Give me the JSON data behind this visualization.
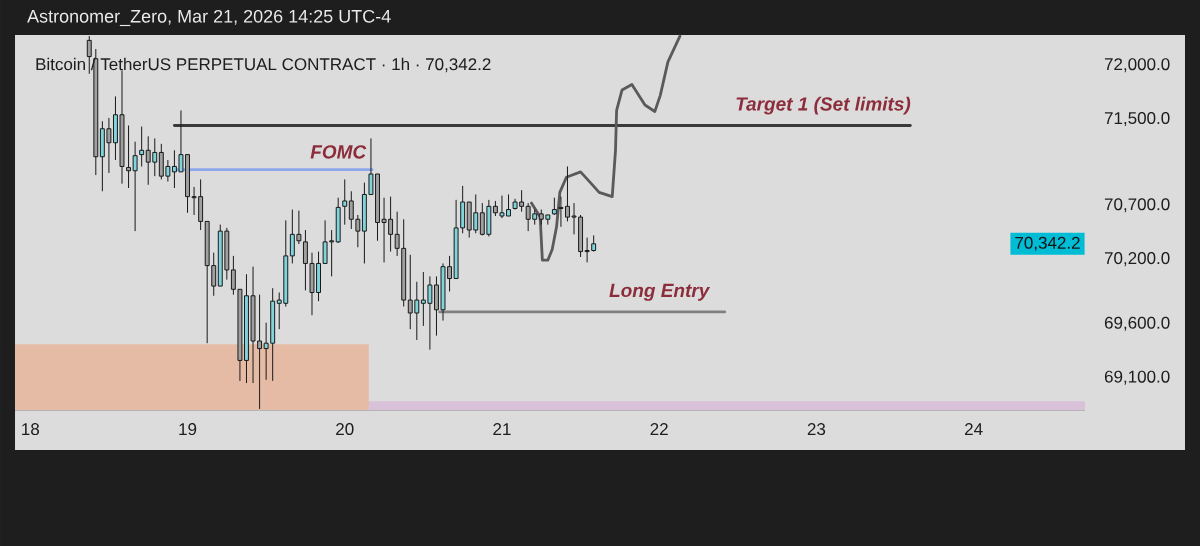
{
  "chart_data": {
    "type": "candlestick",
    "title": "Bitcoin / TetherUS PERPETUAL CONTRACT · 1h · 70,342.2",
    "annotations": [
      "Astronomer_Zero, Mar 21, 2026 14:25 UTC-4",
      {
        "text": "FOMC",
        "x": "2026-03-19T23:00",
        "y": 71030
      },
      {
        "text": "Target 1 (Set limits)",
        "x": "2026-03-23T01:00",
        "y": 71440
      },
      {
        "text": "Long Entry",
        "x": "2026-03-22T00:00",
        "y": 69710
      },
      "70,342.2"
    ],
    "x": [
      "2026-03-18T09:00",
      "2026-03-18T10:00",
      "2026-03-18T11:00",
      "2026-03-18T12:00",
      "2026-03-18T13:00",
      "2026-03-18T14:00",
      "2026-03-18T15:00",
      "2026-03-18T16:00",
      "2026-03-18T17:00",
      "2026-03-18T18:00",
      "2026-03-18T19:00",
      "2026-03-18T20:00",
      "2026-03-18T21:00",
      "2026-03-18T22:00",
      "2026-03-18T23:00",
      "2026-03-19T00:00",
      "2026-03-19T01:00",
      "2026-03-19T02:00",
      "2026-03-19T03:00",
      "2026-03-19T04:00",
      "2026-03-19T05:00",
      "2026-03-19T06:00",
      "2026-03-19T07:00",
      "2026-03-19T08:00",
      "2026-03-19T09:00",
      "2026-03-19T10:00",
      "2026-03-19T11:00",
      "2026-03-19T12:00",
      "2026-03-19T13:00",
      "2026-03-19T14:00",
      "2026-03-19T15:00",
      "2026-03-19T16:00",
      "2026-03-19T17:00",
      "2026-03-19T18:00",
      "2026-03-19T19:00",
      "2026-03-19T20:00",
      "2026-03-19T21:00",
      "2026-03-19T22:00",
      "2026-03-19T23:00",
      "2026-03-20T00:00",
      "2026-03-20T01:00",
      "2026-03-20T02:00",
      "2026-03-20T03:00",
      "2026-03-20T04:00",
      "2026-03-20T05:00",
      "2026-03-20T06:00",
      "2026-03-20T07:00",
      "2026-03-20T08:00",
      "2026-03-20T09:00",
      "2026-03-20T10:00",
      "2026-03-20T11:00",
      "2026-03-20T12:00",
      "2026-03-20T13:00",
      "2026-03-20T14:00",
      "2026-03-20T15:00",
      "2026-03-20T16:00",
      "2026-03-20T17:00",
      "2026-03-20T18:00",
      "2026-03-20T19:00",
      "2026-03-20T20:00",
      "2026-03-20T21:00",
      "2026-03-20T22:00",
      "2026-03-20T23:00",
      "2026-03-21T00:00",
      "2026-03-21T01:00",
      "2026-03-21T02:00",
      "2026-03-21T03:00",
      "2026-03-21T04:00",
      "2026-03-21T05:00",
      "2026-03-21T06:00",
      "2026-03-21T07:00",
      "2026-03-21T08:00",
      "2026-03-21T09:00",
      "2026-03-21T10:00",
      "2026-03-21T11:00",
      "2026-03-21T12:00",
      "2026-03-21T13:00",
      "2026-03-21T14:00"
    ],
    "ohlc": [
      [
        72230,
        72270,
        71920,
        72080
      ],
      [
        72060,
        72150,
        70980,
        71150
      ],
      [
        71150,
        71480,
        70830,
        71410
      ],
      [
        71410,
        71510,
        71000,
        71280
      ],
      [
        71280,
        71710,
        71120,
        71540
      ],
      [
        71540,
        71950,
        70900,
        71060
      ],
      [
        71050,
        71440,
        70860,
        71020
      ],
      [
        71020,
        71290,
        70460,
        71160
      ],
      [
        71170,
        71430,
        71060,
        71210
      ],
      [
        71210,
        71340,
        70890,
        71100
      ],
      [
        71100,
        71320,
        70970,
        71190
      ],
      [
        71190,
        71270,
        70940,
        70970
      ],
      [
        70970,
        71120,
        70920,
        71060
      ],
      [
        71010,
        71210,
        70860,
        71060
      ],
      [
        71010,
        71580,
        71010,
        71170
      ],
      [
        71170,
        71170,
        70630,
        70780
      ],
      [
        70780,
        70870,
        70610,
        70770
      ],
      [
        70780,
        70940,
        70470,
        70550
      ],
      [
        70550,
        70550,
        69420,
        70140
      ],
      [
        70140,
        70260,
        69860,
        69950
      ],
      [
        69950,
        70520,
        69950,
        70460
      ],
      [
        70460,
        70490,
        70010,
        70100
      ],
      [
        70100,
        70230,
        69870,
        69920
      ],
      [
        69920,
        69920,
        69070,
        69260
      ],
      [
        69260,
        70060,
        69050,
        69860
      ],
      [
        69860,
        70130,
        69050,
        69440
      ],
      [
        69440,
        69870,
        68810,
        69370
      ],
      [
        69370,
        69610,
        69080,
        69420
      ],
      [
        69420,
        69930,
        69070,
        69810
      ],
      [
        69790,
        69890,
        69550,
        69820
      ],
      [
        69790,
        70560,
        69760,
        70230
      ],
      [
        70230,
        70660,
        70160,
        70430
      ],
      [
        70430,
        70650,
        70340,
        70370
      ],
      [
        70360,
        70470,
        69910,
        70160
      ],
      [
        70160,
        70260,
        69680,
        69890
      ],
      [
        69890,
        70270,
        69810,
        70160
      ],
      [
        70160,
        70560,
        70160,
        70360
      ],
      [
        70370,
        70470,
        70040,
        70360
      ],
      [
        70360,
        70770,
        70350,
        70680
      ],
      [
        70690,
        70940,
        70520,
        70740
      ],
      [
        70740,
        70830,
        70480,
        70570
      ],
      [
        70570,
        70610,
        70310,
        70460
      ],
      [
        70460,
        70910,
        70160,
        70800
      ],
      [
        70800,
        71320,
        70800,
        70990
      ],
      [
        70990,
        70990,
        70370,
        70540
      ],
      [
        70570,
        70770,
        70170,
        70540
      ],
      [
        70570,
        70780,
        70270,
        70430
      ],
      [
        70430,
        70640,
        70230,
        70300
      ],
      [
        70300,
        70570,
        69760,
        69820
      ],
      [
        69820,
        70240,
        69550,
        69700
      ],
      [
        69700,
        69990,
        69450,
        69820
      ],
      [
        69790,
        70080,
        69580,
        69820
      ],
      [
        69790,
        70040,
        69360,
        69960
      ],
      [
        69960,
        70040,
        69490,
        69730
      ],
      [
        69730,
        70160,
        69630,
        70130
      ],
      [
        70130,
        70230,
        69900,
        70020
      ],
      [
        70020,
        70750,
        70020,
        70490
      ],
      [
        70490,
        70880,
        70440,
        70730
      ],
      [
        70730,
        70730,
        70400,
        70470
      ],
      [
        70470,
        70800,
        70440,
        70630
      ],
      [
        70630,
        70720,
        70420,
        70430
      ],
      [
        70430,
        70750,
        70410,
        70690
      ],
      [
        70690,
        70740,
        70600,
        70630
      ],
      [
        70600,
        70790,
        70580,
        70630
      ],
      [
        70600,
        70800,
        70600,
        70660
      ],
      [
        70670,
        70760,
        70660,
        70730
      ],
      [
        70730,
        70840,
        70640,
        70690
      ],
      [
        70690,
        70720,
        70460,
        70570
      ],
      [
        70570,
        70660,
        70520,
        70620
      ],
      [
        70620,
        70660,
        70520,
        70570
      ],
      [
        70570,
        70610,
        70520,
        70610
      ],
      [
        70620,
        70770,
        70610,
        70660
      ],
      [
        70680,
        70780,
        70500,
        70670
      ],
      [
        70690,
        71060,
        70550,
        70590
      ],
      [
        70600,
        70720,
        70430,
        70590
      ],
      [
        70590,
        70610,
        70220,
        70270
      ],
      [
        70280,
        70400,
        70170,
        70270
      ],
      [
        70280,
        70420,
        70270,
        70342.2
      ]
    ],
    "colors": [
      "#a0a0a0",
      "#a0a0a0",
      "#80d4dc",
      "#a0a0a0",
      "#80d4dc",
      "#a0a0a0",
      "#a0a0a0",
      "#80d4dc",
      "#80d4dc",
      "#a0a0a0",
      "#80d4dc",
      "#a0a0a0",
      "#80d4dc",
      "#80d4dc",
      "#80d4dc",
      "#a0a0a0",
      "#a0a0a0",
      "#a0a0a0",
      "#a0a0a0",
      "#a0a0a0",
      "#80d4dc",
      "#a0a0a0",
      "#a0a0a0",
      "#a0a0a0",
      "#80d4dc",
      "#a0a0a0",
      "#a0a0a0",
      "#80d4dc",
      "#80d4dc",
      "#80d4dc",
      "#80d4dc",
      "#80d4dc",
      "#a0a0a0",
      "#a0a0a0",
      "#a0a0a0",
      "#80d4dc",
      "#80d4dc",
      "#a0a0a0",
      "#80d4dc",
      "#80d4dc",
      "#a0a0a0",
      "#a0a0a0",
      "#80d4dc",
      "#80d4dc",
      "#a0a0a0",
      "#a0a0a0",
      "#a0a0a0",
      "#a0a0a0",
      "#a0a0a0",
      "#a0a0a0",
      "#80d4dc",
      "#80d4dc",
      "#80d4dc",
      "#a0a0a0",
      "#80d4dc",
      "#a0a0a0",
      "#80d4dc",
      "#80d4dc",
      "#a0a0a0",
      "#80d4dc",
      "#a0a0a0",
      "#80d4dc",
      "#a0a0a0",
      "#80d4dc",
      "#80d4dc",
      "#80d4dc",
      "#a0a0a0",
      "#a0a0a0",
      "#80d4dc",
      "#a0a0a0",
      "#80d4dc",
      "#80d4dc",
      "#a0a0a0",
      "#a0a0a0",
      "#a0a0a0",
      "#a0a0a0",
      "#a0a0a0",
      "#80d4dc"
    ],
    "series": [
      {
        "type": "area",
        "color": "#d9c2d9",
        "x": [
          "2026-03-17T21:40",
          "2026-03-24T17:00"
        ],
        "values": [
          68880,
          68880
        ]
      },
      {
        "type": "area",
        "color": "#e6bba5",
        "x": [
          "2026-03-17T21:40",
          "2026-03-20T03:40"
        ],
        "values": [
          69410,
          69410
        ]
      },
      {
        "type": "line",
        "color": "#8ea6ec",
        "x": [
          "2026-03-18T22:00",
          "2026-03-20T04:10"
        ],
        "values": [
          71030,
          71030
        ]
      },
      {
        "type": "line",
        "color": "#3a3a3a",
        "x": [
          "2026-03-18T22:00",
          "2026-03-23T14:20"
        ],
        "values": [
          71440,
          71440
        ]
      },
      {
        "type": "line",
        "color": "#808080",
        "x": [
          "2026-03-20T14:30",
          "2026-03-22T10:00"
        ],
        "values": [
          69710,
          69710
        ]
      },
      {
        "type": "line",
        "color": "#5a5a5a",
        "x": [
          "2026-03-21T04:30",
          "2026-03-21T05:50",
          "2026-03-21T06:10",
          "2026-03-21T07:00",
          "2026-03-21T07:40",
          "2026-03-21T08:20",
          "2026-03-21T08:50",
          "2026-03-21T09:50",
          "2026-03-21T12:00",
          "2026-03-21T13:30",
          "2026-03-21T14:50",
          "2026-03-21T16:50",
          "2026-03-21T17:20",
          "2026-03-21T17:30",
          "2026-03-21T18:20",
          "2026-03-21T19:50",
          "2026-03-21T21:50",
          "2026-03-21T23:20",
          "2026-03-22T00:10",
          "2026-03-22T01:20",
          "2026-03-22T03:10"
        ],
        "values": [
          70720,
          70590,
          70190,
          70190,
          70290,
          70500,
          70820,
          70960,
          71010,
          70910,
          70820,
          70780,
          71210,
          71580,
          71770,
          71820,
          71630,
          71570,
          71720,
          72030,
          72270
        ]
      }
    ],
    "xlim": [
      "2026-03-17T21:40",
      "2026-03-24T17:00"
    ],
    "xticks": [
      {
        "value": "2026-03-18",
        "label": "18"
      },
      {
        "value": "2026-03-19",
        "label": "19"
      },
      {
        "value": "2026-03-20",
        "label": "20"
      },
      {
        "value": "2026-03-21",
        "label": "21"
      },
      {
        "value": "2026-03-22",
        "label": "22"
      },
      {
        "value": "2026-03-23",
        "label": "23"
      },
      {
        "value": "2026-03-24",
        "label": "24"
      }
    ],
    "ylim": [
      68800,
      72280
    ],
    "yticks": [
      {
        "value": 69100,
        "label": "69,100.0"
      },
      {
        "value": 69600,
        "label": "69,600.0"
      },
      {
        "value": 70200,
        "label": "70,200.0"
      },
      {
        "value": 70700,
        "label": "70,700.0"
      },
      {
        "value": 71500,
        "label": "71,500.0"
      },
      {
        "value": 72000,
        "label": "72,000.0"
      }
    ]
  }
}
